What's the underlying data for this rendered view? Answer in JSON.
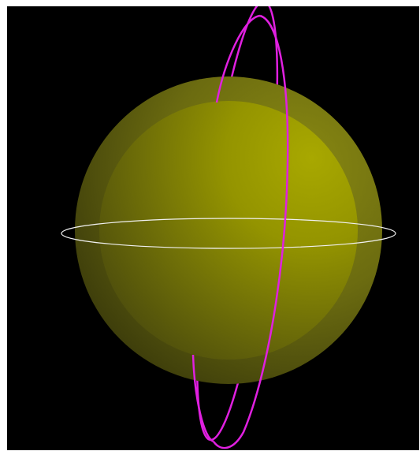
{
  "scene": {
    "background_color": "#000000",
    "frame_color": "#ffffff",
    "outer_sphere_color": "#6b6b10",
    "inner_sphere_color": "#a0a000",
    "equator_ring_color": "#f0f0f0",
    "polar_orbit_color": "#e020e0",
    "icons": [
      "outer-sphere",
      "inner-sphere",
      "equatorial-ring",
      "polar-orbit-ellipse"
    ]
  }
}
